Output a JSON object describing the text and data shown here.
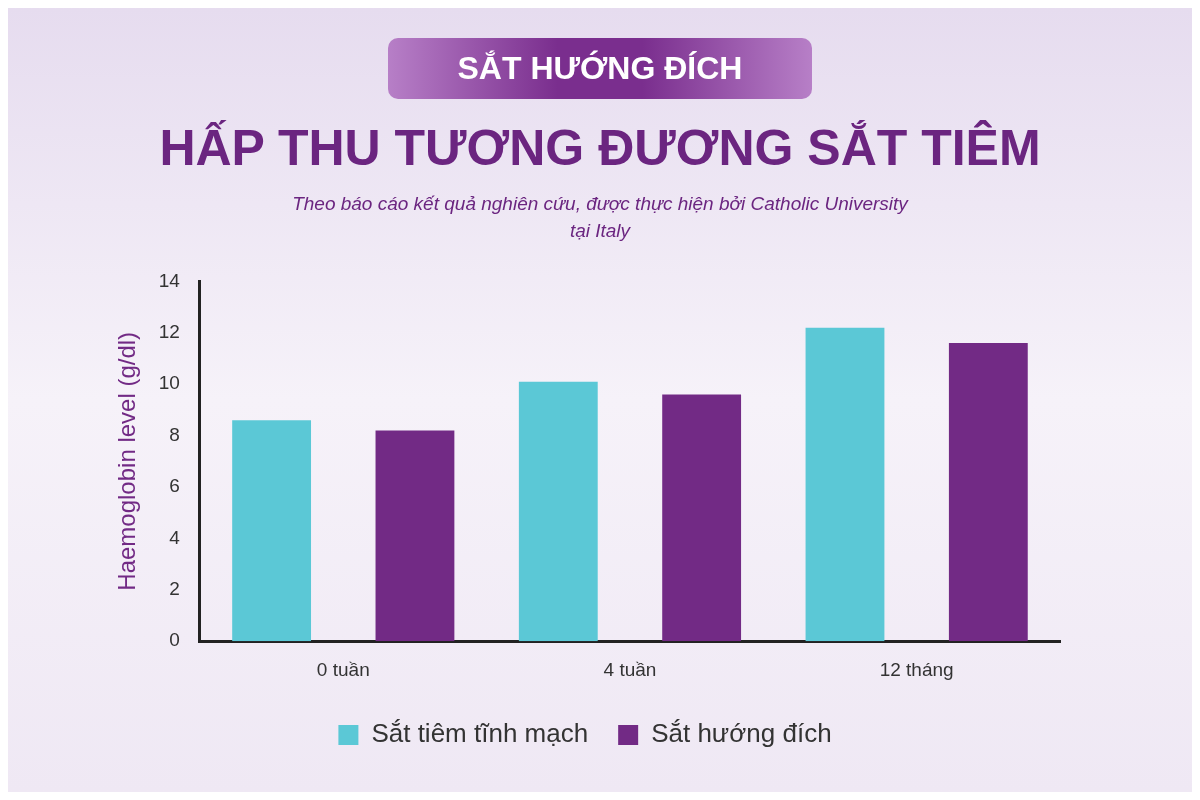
{
  "chart_data": {
    "type": "bar",
    "title": "HẤP THU TƯƠNG ĐƯƠNG SẮT TIÊM",
    "subtitle": "Theo báo cáo kết quả nghiên cứu, được thực hiện bởi Catholic University tại Italy",
    "annotations": [
      "SẮT HƯỚNG ĐÍCH"
    ],
    "ylabel": "Haemoglobin level (g/dl)",
    "categories": [
      "0 tuần",
      "4 tuần",
      "12 tháng"
    ],
    "series": [
      {
        "name": "Sắt tiêm tĩnh mạch",
        "color": "#5bc8d6",
        "values": [
          8.6,
          10.1,
          12.2
        ]
      },
      {
        "name": "Sắt hướng đích",
        "color": "#722a85",
        "values": [
          8.2,
          9.6,
          11.6
        ]
      }
    ],
    "ylim": [
      0,
      14
    ],
    "yticks": [
      0,
      2,
      4,
      6,
      8,
      10,
      12,
      14
    ],
    "grid": false,
    "legend": "bottom"
  }
}
